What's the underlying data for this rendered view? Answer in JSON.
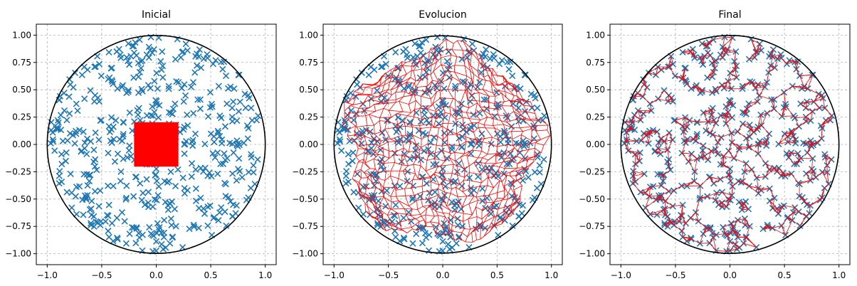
{
  "chart_data": [
    {
      "type": "scatter",
      "title": "Inicial",
      "xlabel": "",
      "ylabel": "",
      "xlim": [
        -1.1,
        1.1
      ],
      "ylim": [
        -1.1,
        1.1
      ],
      "xticks": [
        "−1.0",
        "−0.5",
        "0.0",
        "0.5",
        "1.0"
      ],
      "yticks": [
        "1.00",
        "0.75",
        "0.50",
        "0.25",
        "0.00",
        "−0.25",
        "−0.50",
        "−0.75",
        "−1.00"
      ],
      "grid": true,
      "unit_circle": true,
      "mesh": "square",
      "mesh_extent": [
        -0.2,
        0.2,
        -0.2,
        0.2
      ],
      "point_count": 500
    },
    {
      "type": "scatter",
      "title": "Evolucion",
      "xlabel": "",
      "ylabel": "",
      "xlim": [
        -1.1,
        1.1
      ],
      "ylim": [
        -1.1,
        1.1
      ],
      "xticks": [
        "−1.0",
        "−0.5",
        "0.0",
        "0.5",
        "1.0"
      ],
      "yticks": [
        "1.00",
        "0.75",
        "0.50",
        "0.25",
        "0.00",
        "−0.25",
        "−0.50",
        "−0.75",
        "−1.00"
      ],
      "grid": true,
      "unit_circle": true,
      "mesh": "expanding-grid",
      "mesh_extent": [
        -0.95,
        0.95,
        -0.9,
        0.9
      ],
      "point_count": 500
    },
    {
      "type": "scatter",
      "title": "Final",
      "xlabel": "",
      "ylabel": "",
      "xlim": [
        -1.1,
        1.1
      ],
      "ylim": [
        -1.1,
        1.1
      ],
      "xticks": [
        "−1.0",
        "−0.5",
        "0.0",
        "0.5",
        "1.0"
      ],
      "yticks": [
        "1.00",
        "0.75",
        "0.50",
        "0.25",
        "0.00",
        "−0.25",
        "−0.50",
        "−0.75",
        "−1.00"
      ],
      "grid": true,
      "unit_circle": true,
      "mesh": "fitted-to-points",
      "mesh_extent": [
        -1.0,
        1.0,
        -1.0,
        1.0
      ],
      "point_count": 500
    }
  ],
  "colors": {
    "points": "#1f77b4",
    "mesh": "#ff0000",
    "circle": "#000000",
    "grid": "#b0b0b0"
  }
}
